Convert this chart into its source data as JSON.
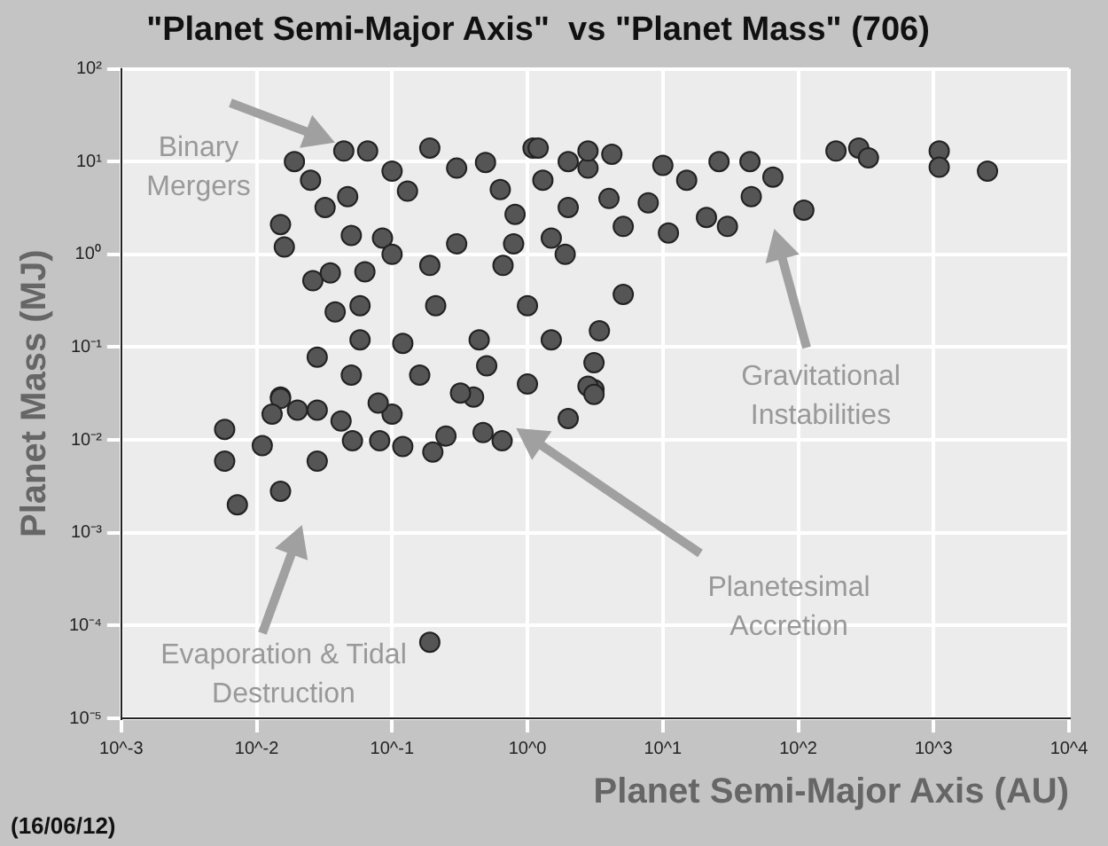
{
  "chart_data": {
    "type": "scatter",
    "title": "\"Planet Semi-Major Axis\"  vs \"Planet Mass\" (706)",
    "xlabel": "Planet Semi-Major Axis (AU)",
    "ylabel": "Planet Mass (MJ)",
    "log": "xy",
    "grid": true,
    "legend": false,
    "marker": "circle",
    "xlim": [
      0.001,
      10000
    ],
    "ylim": [
      1e-05,
      100
    ],
    "xticks": [
      {
        "value": 0.001,
        "label": "10^-3"
      },
      {
        "value": 0.01,
        "label": "10^-2"
      },
      {
        "value": 0.1,
        "label": "10^-1"
      },
      {
        "value": 1,
        "label": "10^0"
      },
      {
        "value": 10,
        "label": "10^1"
      },
      {
        "value": 100,
        "label": "10^2"
      },
      {
        "value": 1000,
        "label": "10^3"
      },
      {
        "value": 10000,
        "label": "10^4"
      }
    ],
    "yticks": [
      {
        "value": 1e-05,
        "label": "10⁻⁵"
      },
      {
        "value": 0.0001,
        "label": "10⁻⁴"
      },
      {
        "value": 0.001,
        "label": "10⁻³"
      },
      {
        "value": 0.01,
        "label": "10⁻²"
      },
      {
        "value": 0.1,
        "label": "10⁻¹"
      },
      {
        "value": 1,
        "label": "10⁰"
      },
      {
        "value": 10,
        "label": "10¹"
      },
      {
        "value": 100,
        "label": "10²"
      }
    ],
    "series": [
      {
        "color": "#555555",
        "x": [
          0.019,
          0.044,
          0.066,
          0.19,
          1.1,
          0.015,
          0.016,
          0.026,
          0.038,
          0.058,
          0.028,
          0.058,
          0.12,
          0.21,
          0.3,
          0.49,
          0.81,
          1.5,
          3.1,
          5.1,
          2.8,
          5.1,
          0.44,
          1.0,
          0.66,
          0.085,
          0.047,
          0.13,
          0.3,
          0.063,
          0.19,
          3.1,
          0.015,
          1.2,
          2.8,
          4.2,
          10,
          15,
          26,
          44,
          65,
          45,
          21,
          30,
          11,
          110,
          190,
          280,
          330,
          1100,
          1100,
          2500,
          7.8,
          3.4,
          2.8,
          1.9,
          1.5,
          0.0058,
          0.0058,
          0.0072,
          0.011,
          0.015,
          0.028,
          0.015,
          0.013,
          0.02,
          0.028,
          0.19,
          0.051,
          0.081,
          0.12,
          0.2,
          0.25,
          0.47,
          0.65,
          0.4,
          2.0,
          0.042,
          0.1,
          3.1,
          0.032,
          0.05,
          0.1,
          0.63,
          1.3,
          2.0,
          0.79,
          0.16,
          0.079,
          0.32,
          0.05,
          0.5,
          1.0,
          0.025,
          0.1,
          2.0,
          4.0,
          0.035
        ],
        "values": [
          10,
          13,
          13,
          14,
          14,
          2.1,
          1.2,
          0.52,
          0.24,
          0.28,
          0.078,
          0.12,
          0.11,
          0.28,
          1.3,
          9.8,
          2.7,
          1.5,
          0.068,
          0.37,
          8.5,
          2.0,
          0.12,
          0.28,
          0.76,
          1.5,
          4.2,
          4.8,
          8.5,
          0.65,
          0.76,
          0.035,
          0.029,
          14,
          13,
          12,
          9.1,
          6.3,
          10,
          10,
          6.8,
          4.2,
          2.5,
          2.0,
          1.7,
          3.0,
          13,
          14,
          11,
          13,
          8.7,
          7.9,
          3.6,
          0.15,
          0.038,
          1.0,
          0.12,
          0.013,
          0.0059,
          0.002,
          0.0087,
          0.0028,
          0.0059,
          0.028,
          0.019,
          0.021,
          0.021,
          6.6e-05,
          0.0098,
          0.0098,
          0.0085,
          0.0074,
          0.011,
          0.012,
          0.0098,
          0.029,
          0.017,
          0.016,
          0.019,
          0.031,
          3.2,
          1.6,
          1.0,
          5.0,
          6.3,
          3.2,
          1.3,
          0.05,
          0.025,
          0.032,
          0.05,
          0.063,
          0.04,
          6.3,
          7.9,
          10,
          4.0,
          0.63
        ]
      }
    ],
    "annotations": [
      "Binary Mergers",
      "Gravitational Instabilities",
      "Planetesimal Accretion",
      "Evaporation & Tidal Destruction",
      "(16/06/12)"
    ]
  }
}
